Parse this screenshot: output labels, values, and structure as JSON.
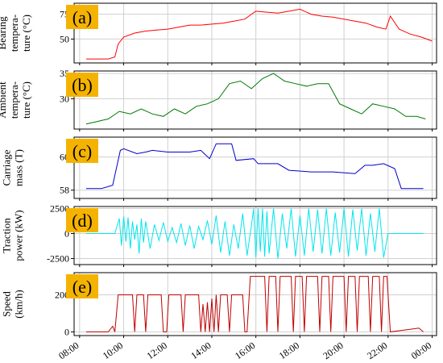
{
  "chart_data": {
    "type": "line",
    "grid": true,
    "x": {
      "ticks": [
        "08:00",
        "10:00",
        "12:00",
        "14:00",
        "16:00",
        "18:00",
        "20:00",
        "22:00",
        "00:00"
      ],
      "tick_hours": [
        8,
        10,
        12,
        14,
        16,
        18,
        20,
        22,
        24
      ],
      "lim": [
        7.75,
        24.2
      ]
    },
    "badge_color": "#f5b301",
    "panels": [
      {
        "id": "a",
        "badge": "(a)",
        "ylabel": [
          "Bearing",
          "tempera-",
          "ture (°C)"
        ],
        "color": "#ff0000",
        "ylim": [
          26,
          86
        ],
        "yticks": [
          50,
          75
        ],
        "series": {
          "name": "",
          "t": [
            8.3,
            8.8,
            9.3,
            9.6,
            9.75,
            10.0,
            10.5,
            11.0,
            11.5,
            12.0,
            12.5,
            13.0,
            13.5,
            14.0,
            14.5,
            15.0,
            15.5,
            15.8,
            16.0,
            16.5,
            17.0,
            17.5,
            18.0,
            18.5,
            19.0,
            19.5,
            20.0,
            20.5,
            21.0,
            21.5,
            21.9,
            22.1,
            22.5,
            23.0,
            23.5,
            24.0
          ],
          "v": [
            30,
            30,
            30,
            32,
            45,
            52,
            56,
            58,
            59,
            60,
            62,
            64,
            64,
            65,
            66,
            68,
            70,
            75,
            78,
            77,
            76,
            78,
            80,
            75,
            73,
            72,
            70,
            68,
            66,
            62,
            60,
            73,
            60,
            55,
            52,
            48
          ]
        }
      },
      {
        "id": "b",
        "badge": "(b)",
        "ylabel": [
          "Ambient",
          "tempera-",
          "ture (°C)"
        ],
        "color": "#007a00",
        "ylim": [
          24,
          35.5
        ],
        "yticks": [
          30,
          35
        ],
        "series": {
          "name": "",
          "t": [
            8.3,
            8.8,
            9.3,
            9.8,
            10.3,
            10.8,
            11.3,
            11.8,
            12.3,
            12.8,
            13.3,
            13.8,
            14.3,
            14.8,
            15.3,
            15.8,
            16.3,
            16.8,
            17.3,
            17.8,
            18.3,
            18.8,
            19.3,
            19.8,
            20.3,
            20.8,
            21.3,
            21.8,
            22.3,
            22.8,
            23.3,
            23.7
          ],
          "v": [
            25,
            25.5,
            26,
            27.5,
            27,
            28,
            27,
            26.5,
            28,
            27,
            28.5,
            29,
            30,
            33,
            33.5,
            32,
            34,
            35,
            33.5,
            33,
            32.5,
            33,
            33,
            29,
            28,
            27,
            29,
            28.5,
            28,
            26.5,
            26.5,
            26
          ]
        }
      },
      {
        "id": "c",
        "badge": "(c)",
        "ylabel": [
          "Carriage",
          "mass (T)"
        ],
        "color": "#0000cc",
        "ylim": [
          57.5,
          61.2
        ],
        "yticks": [
          58,
          60
        ],
        "series": {
          "name": "",
          "t": [
            8.3,
            9.0,
            9.5,
            9.85,
            10.0,
            10.6,
            11.0,
            11.3,
            12.0,
            13.0,
            13.5,
            13.9,
            14.2,
            14.9,
            15.1,
            15.9,
            16.1,
            17.0,
            17.5,
            18.5,
            19.5,
            20.5,
            20.95,
            21.3,
            21.8,
            22.3,
            22.6,
            23.0,
            23.6
          ],
          "v": [
            58.1,
            58.1,
            58.3,
            60.4,
            60.5,
            60.2,
            60.3,
            60.4,
            60.3,
            60.3,
            60.4,
            59.9,
            60.8,
            60.8,
            59.8,
            59.9,
            59.6,
            59.6,
            59.2,
            59.1,
            59.1,
            59.0,
            59.5,
            59.5,
            59.6,
            59.3,
            58.1,
            58.1,
            58.1
          ]
        }
      },
      {
        "id": "d",
        "badge": "(d)",
        "ylabel": [
          "Traction",
          "power (kW)"
        ],
        "color": "#00e5ee",
        "ylim": [
          -3100,
          2700
        ],
        "yticks": [
          -2500,
          0,
          2500
        ],
        "series": {
          "name": "",
          "t": [
            8.3,
            9.3,
            9.6,
            9.8,
            9.9,
            10.0,
            10.1,
            10.2,
            10.3,
            10.4,
            10.5,
            10.6,
            10.7,
            10.8,
            10.9,
            11.0,
            11.2,
            11.4,
            11.6,
            11.8,
            12.0,
            12.2,
            12.4,
            12.6,
            12.8,
            13.0,
            13.2,
            13.4,
            13.6,
            13.8,
            14.0,
            14.2,
            14.4,
            14.6,
            14.8,
            15.0,
            15.2,
            15.4,
            15.6,
            15.8,
            15.9,
            16.0,
            16.1,
            16.2,
            16.3,
            16.4,
            16.5,
            16.6,
            16.8,
            17.0,
            17.2,
            17.4,
            17.6,
            17.8,
            18.0,
            18.2,
            18.4,
            18.6,
            18.8,
            19.0,
            19.2,
            19.4,
            19.6,
            19.8,
            20.0,
            20.2,
            20.4,
            20.6,
            20.8,
            21.0,
            21.2,
            21.4,
            21.6,
            21.8,
            22.0,
            22.2,
            22.4,
            23.0,
            23.6
          ],
          "v": [
            0,
            0,
            0,
            1500,
            -1200,
            1700,
            -800,
            1600,
            -1500,
            1200,
            -600,
            900,
            -2000,
            1500,
            -900,
            1200,
            -1500,
            900,
            -700,
            1100,
            -800,
            600,
            -900,
            1000,
            -1200,
            800,
            -1500,
            700,
            -600,
            1300,
            -1100,
            1800,
            -1900,
            1200,
            -2200,
            900,
            -1500,
            2000,
            -2200,
            800,
            2500,
            -2400,
            2500,
            -1800,
            2500,
            -2300,
            2200,
            -2000,
            2500,
            -2500,
            2000,
            -1500,
            2500,
            -2300,
            1800,
            -2200,
            2500,
            -1800,
            2400,
            -2000,
            2500,
            -2200,
            2100,
            -1900,
            2500,
            -2300,
            2400,
            -1700,
            2500,
            -2200,
            2000,
            -1800,
            2500,
            -2400,
            0,
            0,
            0,
            0,
            0
          ]
        }
      },
      {
        "id": "e",
        "badge": "(e)",
        "ylabel": [
          "Speed",
          "(km/h)"
        ],
        "color": "#c00000",
        "ylim": [
          -20,
          320
        ],
        "yticks": [
          0,
          200
        ],
        "series": {
          "name": "",
          "t": [
            8.3,
            9.3,
            9.5,
            9.6,
            9.75,
            9.85,
            10.4,
            10.5,
            10.6,
            10.9,
            11.0,
            11.1,
            11.7,
            11.8,
            11.95,
            12.05,
            12.6,
            12.7,
            12.8,
            13.4,
            13.5,
            13.6,
            13.7,
            13.8,
            13.9,
            14.0,
            14.1,
            14.2,
            14.3,
            14.4,
            14.7,
            14.8,
            14.9,
            15.4,
            15.5,
            15.6,
            15.75,
            15.85,
            16.4,
            16.5,
            16.6,
            16.9,
            17.0,
            17.1,
            17.6,
            17.7,
            17.8,
            18.1,
            18.2,
            18.3,
            18.8,
            18.9,
            19.0,
            19.3,
            19.4,
            19.5,
            20.0,
            20.1,
            20.2,
            20.5,
            20.6,
            20.7,
            21.1,
            21.2,
            21.3,
            21.6,
            21.7,
            21.8,
            21.95,
            22.1,
            23.4,
            23.6
          ],
          "v": [
            0,
            0,
            30,
            0,
            200,
            200,
            200,
            0,
            200,
            200,
            0,
            200,
            200,
            0,
            0,
            200,
            200,
            0,
            200,
            200,
            0,
            150,
            0,
            160,
            0,
            180,
            0,
            200,
            0,
            200,
            200,
            0,
            200,
            200,
            0,
            0,
            300,
            300,
            300,
            0,
            300,
            300,
            0,
            300,
            300,
            0,
            300,
            300,
            0,
            300,
            300,
            0,
            300,
            300,
            0,
            300,
            300,
            0,
            300,
            300,
            0,
            300,
            300,
            0,
            300,
            300,
            0,
            300,
            300,
            0,
            20,
            0
          ]
        }
      }
    ]
  }
}
